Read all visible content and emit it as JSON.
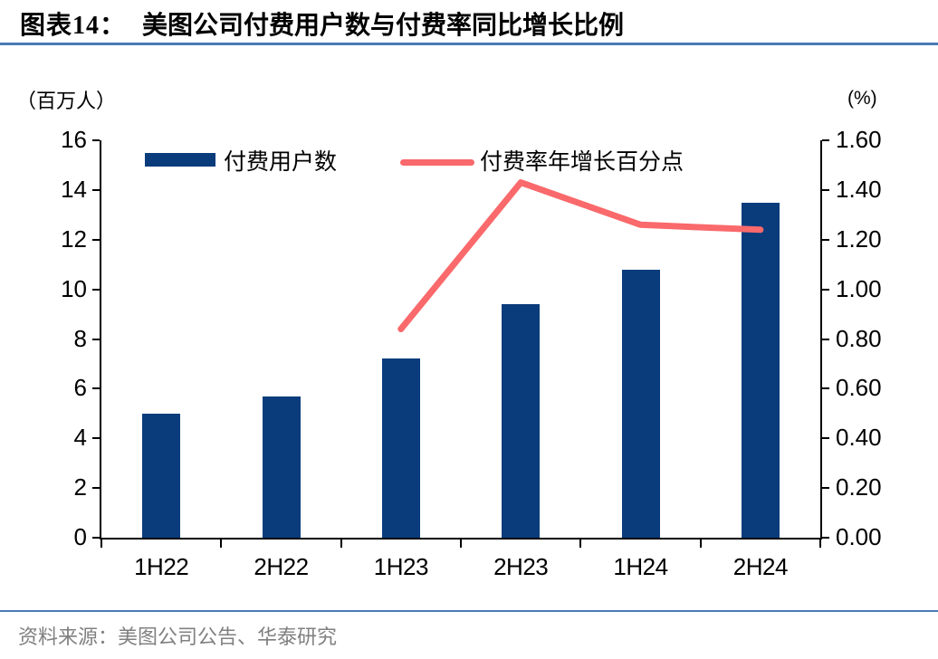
{
  "header": {
    "tag": "图表14：",
    "title": "美图公司付费用户数与付费率同比增长比例"
  },
  "footer": {
    "source": "资料来源：美图公司公告、华泰研究"
  },
  "colors": {
    "bar": "#0a3c7c",
    "line": "#fa696b",
    "rule": "#4a7ab5",
    "axis": "#000000",
    "source_text": "#808080"
  },
  "chart_data": {
    "type": "bar+line",
    "title": "美图公司付费用户数与付费率同比增长比例",
    "categories": [
      "1H22",
      "2H22",
      "1H23",
      "2H23",
      "1H24",
      "2H24"
    ],
    "series": [
      {
        "name": "付费用户数",
        "type": "bar",
        "axis": "left",
        "values": [
          5.0,
          5.7,
          7.2,
          9.4,
          10.8,
          13.5
        ]
      },
      {
        "name": "付费率年增长百分点",
        "type": "line",
        "axis": "right",
        "values": [
          null,
          null,
          0.84,
          1.43,
          1.26,
          1.24
        ]
      }
    ],
    "left_axis": {
      "unit": "（百万人）",
      "min": 0,
      "max": 16,
      "tick_labels": [
        "0",
        "2",
        "4",
        "6",
        "8",
        "10",
        "12",
        "14",
        "16"
      ]
    },
    "right_axis": {
      "unit": "(%)",
      "min": 0,
      "max": 1.6,
      "tick_labels": [
        "0.00",
        "0.20",
        "0.40",
        "0.60",
        "0.80",
        "1.00",
        "1.20",
        "1.40",
        "1.60"
      ]
    },
    "legend_position": "top-inside",
    "grid": false
  }
}
